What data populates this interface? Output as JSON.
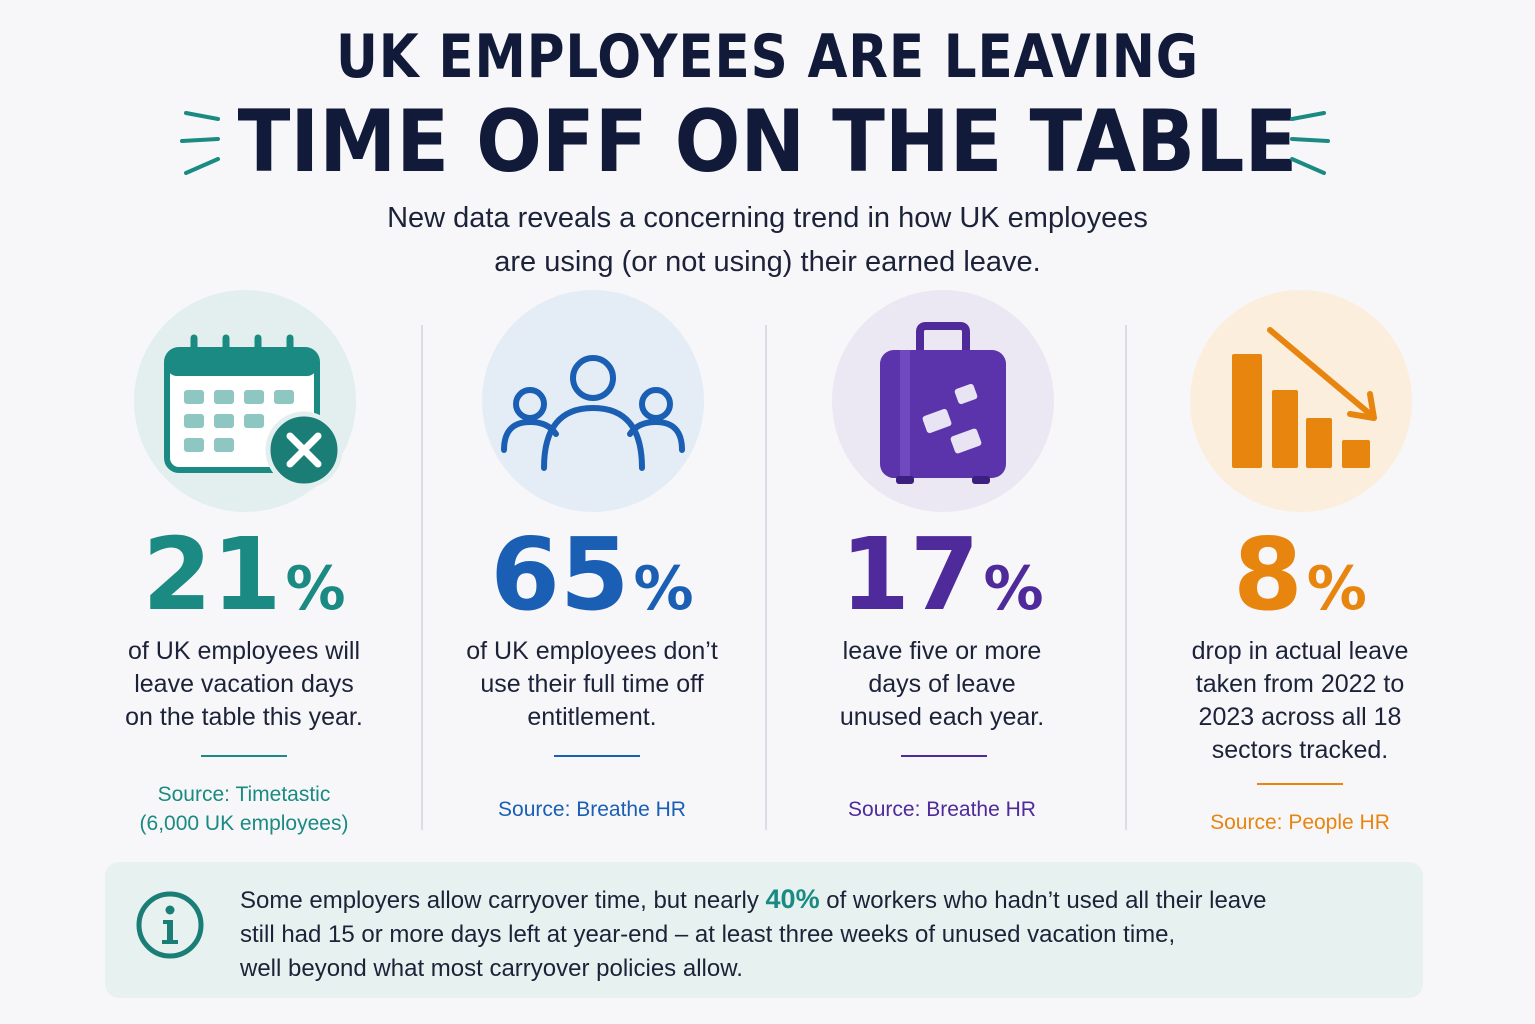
{
  "header": {
    "title_line1": "UK EMPLOYEES ARE LEAVING",
    "title_line2": "TIME OFF ON THE TABLE",
    "subtitle_line1": "New data reveals a concerning trend in how UK employees",
    "subtitle_line2": "are using (or not using) their earned leave."
  },
  "stats": [
    {
      "icon": "calendar-x-icon",
      "value": "21",
      "unit": "%",
      "desc": [
        "of UK employees will",
        "leave vacation days",
        "on the table this year."
      ],
      "source": [
        "Source: Timetastic",
        "(6,000 UK employees)"
      ],
      "color": "#1a8a82",
      "circle_color": "#e3efef"
    },
    {
      "icon": "people-group-icon",
      "value": "65",
      "unit": "%",
      "desc": [
        "of UK employees don’t",
        "use their full time off",
        "entitlement."
      ],
      "source": [
        "Source: Breathe HR"
      ],
      "color": "#1a5fb4",
      "circle_color": "#e4edf5"
    },
    {
      "icon": "suitcase-icon",
      "value": "17",
      "unit": "%",
      "desc": [
        "leave five or more",
        "days of leave",
        "unused each year."
      ],
      "source": [
        "Source: Breathe HR"
      ],
      "color": "#4e2a9a",
      "circle_color": "#ebe8f4"
    },
    {
      "icon": "declining-bar-chart-icon",
      "value": "8",
      "unit": "%",
      "desc": [
        "drop in actual leave",
        "taken from 2022 to",
        "2023 across all 18",
        "sectors tracked."
      ],
      "source": [
        "Source: People HR"
      ],
      "color": "#e8850f",
      "circle_color": "#fbeedd"
    }
  ],
  "info": {
    "icon": "info-icon",
    "text_before": "Some employers allow carryover time, but nearly ",
    "highlight": "40%",
    "text_after_line1": " of workers who hadn’t used all their leave",
    "line2": "still had 15 or more days left at year-end – at least three weeks of unused vacation time,",
    "line3": "well beyond what most carryover policies allow."
  }
}
